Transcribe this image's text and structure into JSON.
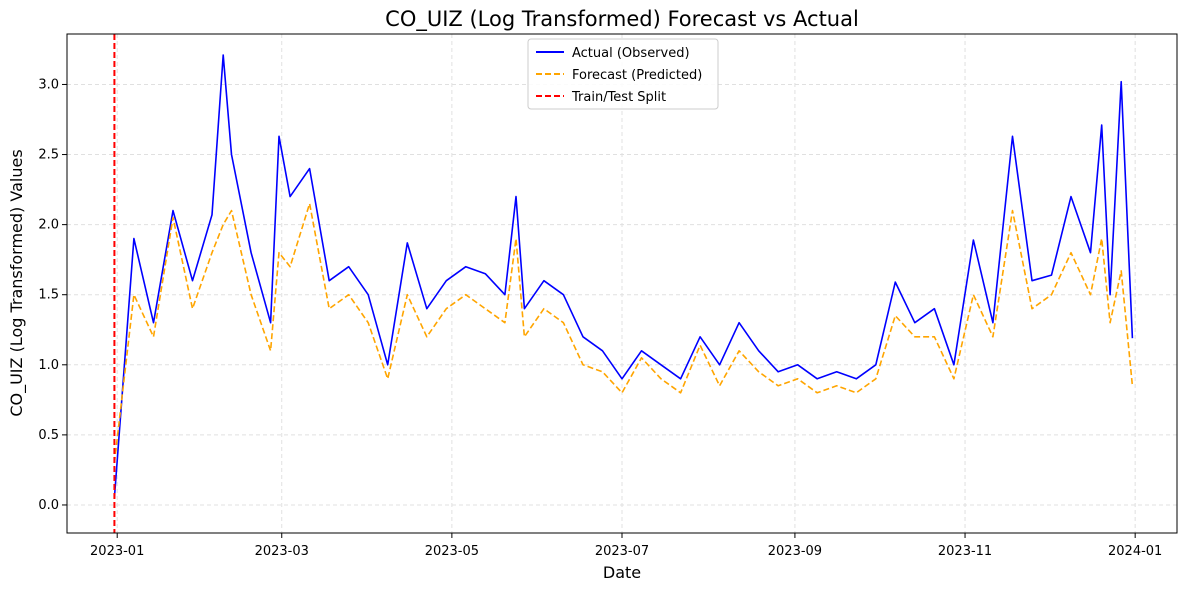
{
  "chart_data": {
    "type": "line",
    "title": "CO_UIZ (Log Transformed) Forecast vs Actual",
    "xlabel": "Date",
    "ylabel": "CO_UIZ (Log Transformed) Values",
    "x_range": [
      "2022-12-14",
      "2024-01-16"
    ],
    "ylim": [
      -0.2,
      3.36
    ],
    "x_tick_labels": [
      "2023-01",
      "2023-03",
      "2023-05",
      "2023-07",
      "2023-09",
      "2023-11",
      "2024-01"
    ],
    "x_tick_dates": [
      "2023-01-01",
      "2023-03-01",
      "2023-05-01",
      "2023-07-01",
      "2023-09-01",
      "2023-11-01",
      "2024-01-01"
    ],
    "y_ticks": [
      0.0,
      0.5,
      1.0,
      1.5,
      2.0,
      2.5,
      3.0
    ],
    "y_tick_labels": [
      "0.0",
      "0.5",
      "1.0",
      "1.5",
      "2.0",
      "2.5",
      "3.0"
    ],
    "grid": true,
    "legend_position": "top-center",
    "split_date": "2022-12-31",
    "series": [
      {
        "name": "Actual (Observed)",
        "color": "#0000ff",
        "style": "solid",
        "x": [
          "2022-12-31",
          "2023-01-07",
          "2023-01-14",
          "2023-01-21",
          "2023-01-28",
          "2023-02-04",
          "2023-02-08",
          "2023-02-11",
          "2023-02-18",
          "2023-02-25",
          "2023-02-28",
          "2023-03-04",
          "2023-03-11",
          "2023-03-18",
          "2023-03-25",
          "2023-04-01",
          "2023-04-08",
          "2023-04-15",
          "2023-04-22",
          "2023-04-29",
          "2023-05-06",
          "2023-05-13",
          "2023-05-20",
          "2023-05-24",
          "2023-05-27",
          "2023-06-03",
          "2023-06-10",
          "2023-06-17",
          "2023-06-24",
          "2023-07-01",
          "2023-07-08",
          "2023-07-15",
          "2023-07-22",
          "2023-07-29",
          "2023-08-05",
          "2023-08-12",
          "2023-08-19",
          "2023-08-26",
          "2023-09-02",
          "2023-09-09",
          "2023-09-16",
          "2023-09-23",
          "2023-09-30",
          "2023-10-07",
          "2023-10-14",
          "2023-10-21",
          "2023-10-28",
          "2023-11-04",
          "2023-11-11",
          "2023-11-18",
          "2023-11-25",
          "2023-12-02",
          "2023-12-09",
          "2023-12-16",
          "2023-12-20",
          "2023-12-23",
          "2023-12-27",
          "2023-12-31"
        ],
        "values": [
          0.05,
          1.9,
          1.3,
          2.1,
          1.6,
          2.07,
          3.21,
          2.5,
          1.8,
          1.3,
          2.63,
          2.2,
          2.4,
          1.6,
          1.7,
          1.5,
          1.0,
          1.87,
          1.4,
          1.6,
          1.7,
          1.65,
          1.5,
          2.2,
          1.4,
          1.6,
          1.5,
          1.2,
          1.1,
          0.9,
          1.1,
          1.0,
          0.9,
          1.2,
          1.0,
          1.3,
          1.1,
          0.95,
          1.0,
          0.9,
          0.95,
          0.9,
          1.0,
          1.59,
          1.3,
          1.4,
          1.0,
          1.89,
          1.3,
          2.63,
          1.6,
          1.64,
          2.2,
          1.8,
          2.71,
          1.5,
          3.02,
          1.19
        ]
      },
      {
        "name": "Forecast (Predicted)",
        "color": "#ffa500",
        "style": "dashed",
        "x": [
          "2022-12-31",
          "2023-01-07",
          "2023-01-14",
          "2023-01-21",
          "2023-01-28",
          "2023-02-04",
          "2023-02-08",
          "2023-02-11",
          "2023-02-18",
          "2023-02-25",
          "2023-02-28",
          "2023-03-04",
          "2023-03-11",
          "2023-03-18",
          "2023-03-25",
          "2023-04-01",
          "2023-04-08",
          "2023-04-15",
          "2023-04-22",
          "2023-04-29",
          "2023-05-06",
          "2023-05-13",
          "2023-05-20",
          "2023-05-24",
          "2023-05-27",
          "2023-06-03",
          "2023-06-10",
          "2023-06-17",
          "2023-06-24",
          "2023-07-01",
          "2023-07-08",
          "2023-07-15",
          "2023-07-22",
          "2023-07-29",
          "2023-08-05",
          "2023-08-12",
          "2023-08-19",
          "2023-08-26",
          "2023-09-02",
          "2023-09-09",
          "2023-09-16",
          "2023-09-23",
          "2023-09-30",
          "2023-10-07",
          "2023-10-14",
          "2023-10-21",
          "2023-10-28",
          "2023-11-04",
          "2023-11-11",
          "2023-11-18",
          "2023-11-25",
          "2023-12-02",
          "2023-12-09",
          "2023-12-16",
          "2023-12-20",
          "2023-12-23",
          "2023-12-27",
          "2023-12-31"
        ],
        "values": [
          0.3,
          1.5,
          1.2,
          2.05,
          1.4,
          1.8,
          2.0,
          2.1,
          1.5,
          1.1,
          1.8,
          1.7,
          2.15,
          1.4,
          1.5,
          1.3,
          0.9,
          1.5,
          1.2,
          1.4,
          1.5,
          1.4,
          1.3,
          1.9,
          1.2,
          1.4,
          1.3,
          1.0,
          0.95,
          0.8,
          1.05,
          0.9,
          0.8,
          1.14,
          0.85,
          1.1,
          0.95,
          0.85,
          0.9,
          0.8,
          0.85,
          0.8,
          0.9,
          1.35,
          1.2,
          1.2,
          0.9,
          1.5,
          1.2,
          2.1,
          1.4,
          1.5,
          1.8,
          1.5,
          1.9,
          1.3,
          1.67,
          0.85
        ]
      }
    ]
  }
}
